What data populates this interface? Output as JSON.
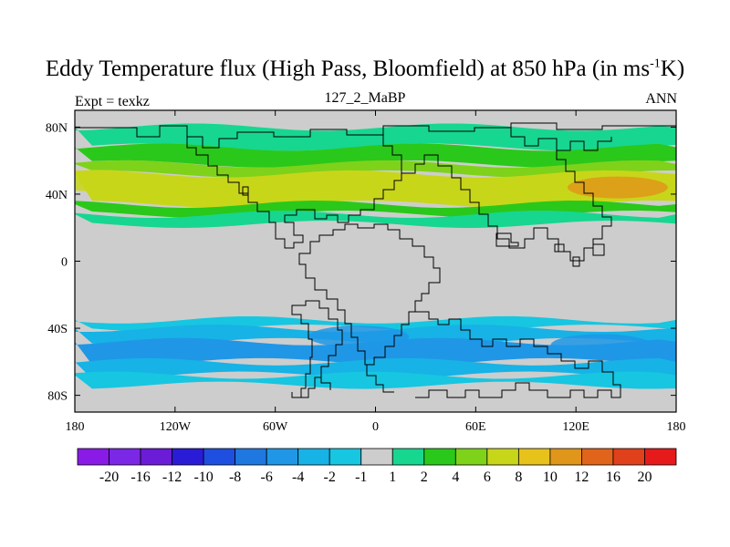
{
  "chart_data": {
    "type": "contour-map",
    "title_main": "Eddy Temperature flux (High Pass, Bloomfield) at 850 hPa (in ms",
    "title_sup": "-1",
    "title_tail": "K)",
    "left_label": "Expt = texkz",
    "subtitle": "127_2_MaBP",
    "right_label": "ANN",
    "lon_range": [
      -180,
      180
    ],
    "lat_range": [
      -90,
      90
    ],
    "x_ticks": [
      {
        "value": -180,
        "label": "180"
      },
      {
        "value": -120,
        "label": "120W"
      },
      {
        "value": -60,
        "label": "60W"
      },
      {
        "value": 0,
        "label": "0"
      },
      {
        "value": 60,
        "label": "60E"
      },
      {
        "value": 120,
        "label": "120E"
      },
      {
        "value": 180,
        "label": "180"
      }
    ],
    "y_ticks": [
      {
        "value": 80,
        "label": "80N"
      },
      {
        "value": 40,
        "label": "40N"
      },
      {
        "value": 0,
        "label": "0"
      },
      {
        "value": -40,
        "label": "40S"
      },
      {
        "value": -80,
        "label": "80S"
      }
    ],
    "colorbar": {
      "colors": [
        "#8a1ae6",
        "#7a28e6",
        "#6a1cd6",
        "#2a1cd6",
        "#1f4fe0",
        "#1f77e0",
        "#1f97e6",
        "#17b2e6",
        "#17c6e0",
        "#cdcdcd",
        "#17d690",
        "#2ac81a",
        "#7ed21a",
        "#c8d61a",
        "#e6c21a",
        "#e0961a",
        "#e0641a",
        "#e0401a",
        "#e61a1a"
      ],
      "labels": [
        "-20",
        "-16",
        "-12",
        "-10",
        "-8",
        "-6",
        "-4",
        "-2",
        "-1",
        "1",
        "2",
        "4",
        "6",
        "8",
        "10",
        "12",
        "16",
        "20"
      ]
    },
    "field_bands": [
      {
        "lat_top": 80,
        "lat_bottom": 68,
        "value": 1.5
      },
      {
        "lat_top": 68,
        "lat_bottom": 58,
        "value": 3
      },
      {
        "lat_top": 58,
        "lat_bottom": 52,
        "value": 4.5
      },
      {
        "lat_top": 52,
        "lat_bottom": 34,
        "value": 6
      },
      {
        "lat_top": 34,
        "lat_bottom": 28,
        "value": 3
      },
      {
        "lat_top": 28,
        "lat_bottom": 22,
        "value": 1.5
      },
      {
        "lat_top": -35,
        "lat_bottom": -40,
        "value": -1.5
      },
      {
        "lat_top": -40,
        "lat_bottom": -48,
        "value": -3
      },
      {
        "lat_top": -48,
        "lat_bottom": -60,
        "value": -4.5
      },
      {
        "lat_top": -60,
        "lat_bottom": -68,
        "value": -3
      },
      {
        "lat_top": -68,
        "lat_bottom": -74,
        "value": -1.5
      }
    ],
    "field_maxima": [
      {
        "lon": -165,
        "lat": 48,
        "value": 7
      },
      {
        "lon": 45,
        "lat": 44,
        "value": 7
      },
      {
        "lon": 145,
        "lat": 44,
        "value": 10
      },
      {
        "lon": -10,
        "lat": -45,
        "value": -6
      },
      {
        "lon": 135,
        "lat": -50,
        "value": -6
      }
    ]
  }
}
